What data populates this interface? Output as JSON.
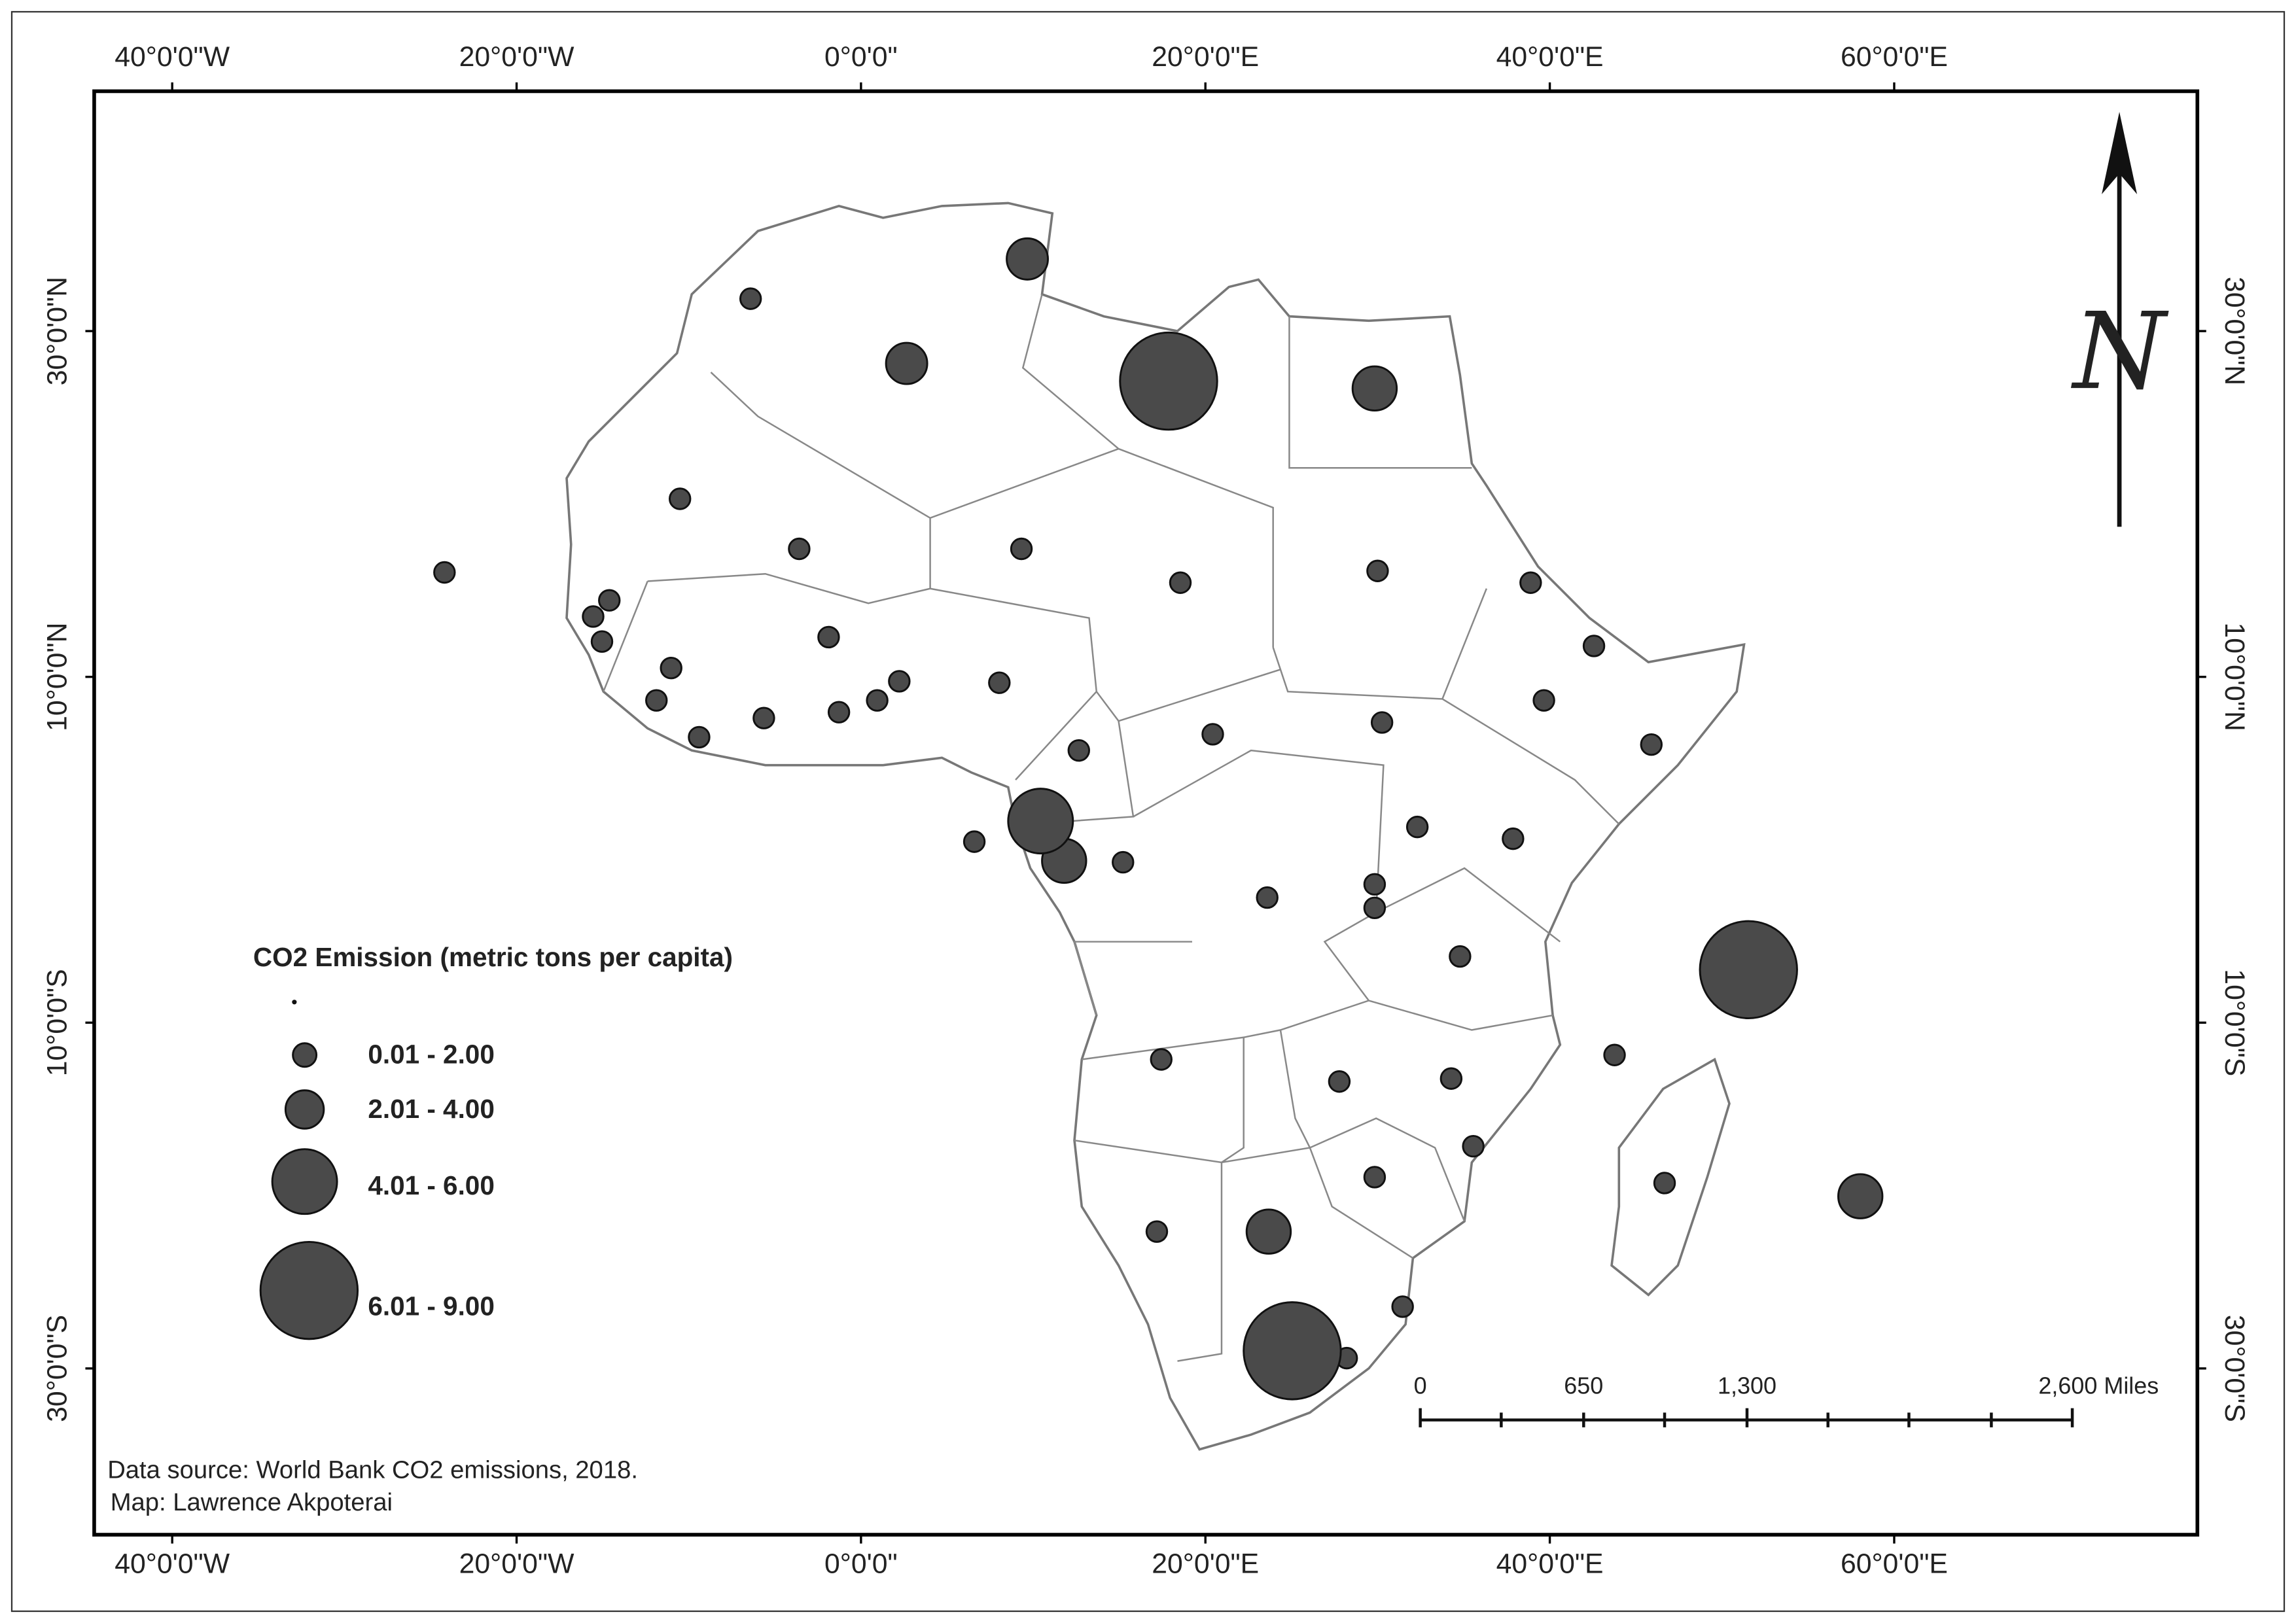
{
  "map": {
    "lon_ticks": [
      {
        "value": -40,
        "label": "40°0'0\"W"
      },
      {
        "value": -20,
        "label": "20°0'0\"W"
      },
      {
        "value": 0,
        "label": "0°0'0\""
      },
      {
        "value": 20,
        "label": "20°0'0\"E"
      },
      {
        "value": 40,
        "label": "40°0'0\"E"
      },
      {
        "value": 60,
        "label": "60°0'0\"E"
      }
    ],
    "lat_ticks": [
      {
        "value": 30,
        "label": "30°0'0\"N"
      },
      {
        "value": 10,
        "label": "10°0'0\"N"
      },
      {
        "value": -10,
        "label": "10°0'0\"S"
      },
      {
        "value": -30,
        "label": "30°0'0\"S"
      }
    ],
    "north_label": "N"
  },
  "legend": {
    "title": "CO2 Emission (metric tons per capita)",
    "classes": [
      "0.01 - 2.00",
      "2.01 - 4.00",
      "4.01 - 6.00",
      "6.01 - 9.00"
    ]
  },
  "scale_bar": {
    "labels": [
      "0",
      "650",
      "1,300",
      "2,600 Miles"
    ]
  },
  "credits": {
    "source": "Data source: World Bank CO2 emissions, 2018.",
    "author": "Map: Lawrence Akpoterai"
  }
}
